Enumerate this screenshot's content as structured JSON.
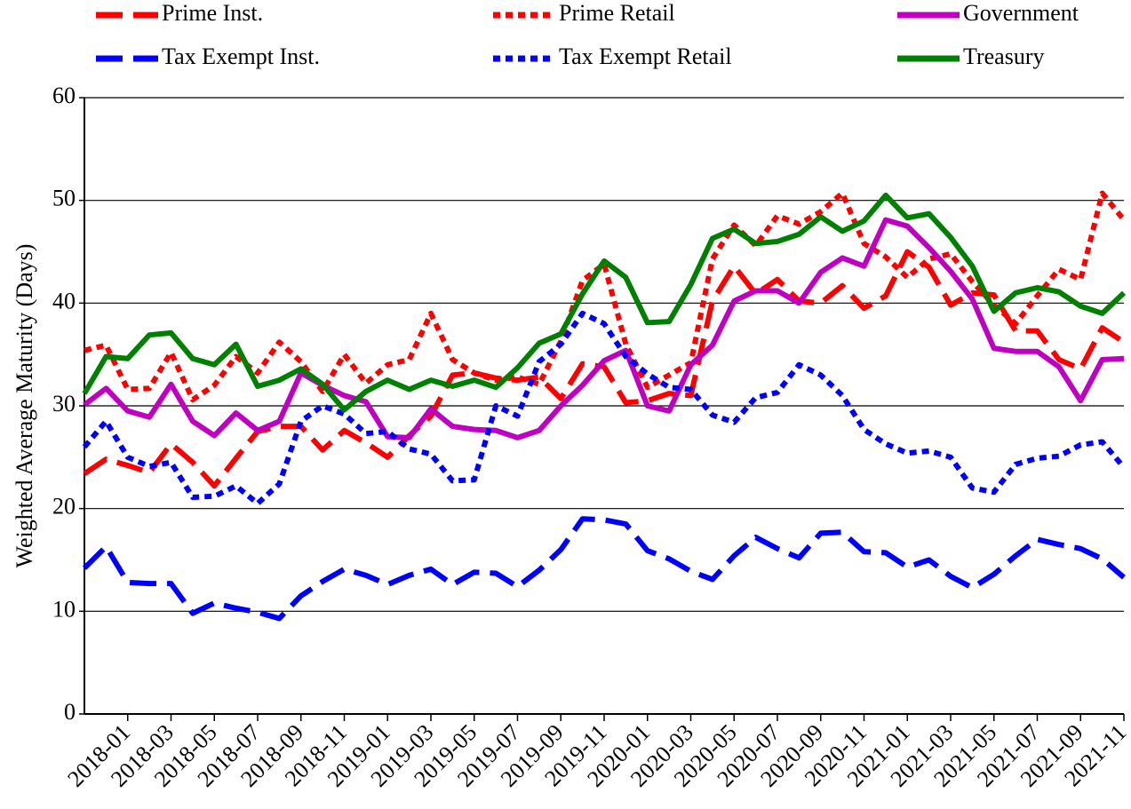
{
  "chart_data": {
    "type": "line",
    "y_label": "Weighted Average Maturity (Days)",
    "categories": [
      null,
      null,
      "2018-01",
      null,
      "2018-03",
      null,
      "2018-05",
      null,
      "2018-07",
      null,
      "2018-09",
      null,
      "2018-11",
      null,
      "2019-01",
      null,
      "2019-03",
      null,
      "2019-05",
      null,
      "2019-07",
      null,
      "2019-09",
      null,
      "2019-11",
      null,
      "2020-01",
      null,
      "2020-03",
      null,
      "2020-05",
      null,
      "2020-07",
      null,
      "2020-09",
      null,
      "2020-11",
      null,
      "2021-01",
      null,
      "2021-03",
      null,
      "2021-05",
      null,
      "2021-07",
      null,
      "2021-09",
      null,
      "2021-11"
    ],
    "ylim": [
      0,
      60
    ],
    "yticks": [
      0,
      10,
      20,
      30,
      40,
      50,
      60
    ],
    "grid": true,
    "legend": "top",
    "series": [
      {
        "name": "Prime Inst.",
        "color": "#ff0000",
        "dash": "dashed",
        "values": [
          23.4,
          24.8,
          24.2,
          23.5,
          26.3,
          24.5,
          22.2,
          24.9,
          27.5,
          28.0,
          28.0,
          25.7,
          27.6,
          26.4,
          25.0,
          27.1,
          29.0,
          33.0,
          33.2,
          32.7,
          32.5,
          32.8,
          30.7,
          34.1,
          33.8,
          30.3,
          30.5,
          31.2,
          31.0,
          40.2,
          43.6,
          40.9,
          42.3,
          40.2,
          40.0,
          41.7,
          39.5,
          40.7,
          45.0,
          43.5,
          39.8,
          41.0,
          40.8,
          37.3,
          37.3,
          34.5,
          33.6,
          37.6,
          36.2
        ]
      },
      {
        "name": "Prime Retail",
        "color": "#ff0000",
        "dash": "dotted",
        "values": [
          35.4,
          35.9,
          31.6,
          31.7,
          35.2,
          30.6,
          32.0,
          34.8,
          33.2,
          36.2,
          34.3,
          31.4,
          35.0,
          32.2,
          34.0,
          34.5,
          39.0,
          34.5,
          33.2,
          32.5,
          32.8,
          32.1,
          36.3,
          42.2,
          43.8,
          36.0,
          31.8,
          33.0,
          34.2,
          44.3,
          47.6,
          45.6,
          48.5,
          47.7,
          48.9,
          50.7,
          45.8,
          44.5,
          42.5,
          44.3,
          44.8,
          42.1,
          39.8,
          38.0,
          40.7,
          43.3,
          42.3,
          50.7,
          48.1
        ]
      },
      {
        "name": "Government",
        "color": "#c000c0",
        "dash": "solid",
        "values": [
          30.1,
          31.7,
          29.5,
          28.9,
          32.1,
          28.5,
          27.1,
          29.3,
          27.6,
          28.5,
          33.2,
          32.0,
          31.0,
          30.4,
          27.0,
          26.9,
          29.7,
          28.0,
          27.7,
          27.6,
          26.9,
          27.6,
          30.0,
          32.0,
          34.4,
          35.4,
          30.0,
          29.5,
          34.0,
          35.9,
          40.2,
          41.2,
          41.2,
          40.0,
          43.0,
          44.4,
          43.6,
          48.1,
          47.5,
          45.4,
          43.1,
          40.4,
          35.6,
          35.3,
          35.3,
          33.8,
          30.5,
          34.5,
          34.6
        ]
      },
      {
        "name": "Tax Exempt Inst.",
        "color": "#0000ff",
        "dash": "dashed",
        "values": [
          14.2,
          16.3,
          12.8,
          12.7,
          12.7,
          9.8,
          10.8,
          10.3,
          9.9,
          9.3,
          11.5,
          12.9,
          14.1,
          13.5,
          12.6,
          13.5,
          14.1,
          12.6,
          13.8,
          13.7,
          12.4,
          14.0,
          16.0,
          19.0,
          18.9,
          18.5,
          15.9,
          15.1,
          13.9,
          13.1,
          15.4,
          17.2,
          16.1,
          15.2,
          17.6,
          17.7,
          15.8,
          15.7,
          14.3,
          15.0,
          13.4,
          12.3,
          13.6,
          15.4,
          17.0,
          16.5,
          16.1,
          15.1,
          13.3
        ]
      },
      {
        "name": "Tax Exempt Retail",
        "color": "#0000ff",
        "dash": "dotted",
        "values": [
          26.0,
          28.5,
          25.0,
          24.1,
          24.5,
          21.1,
          21.2,
          22.2,
          20.5,
          22.4,
          28.5,
          30.0,
          29.2,
          27.3,
          27.5,
          25.8,
          25.3,
          22.7,
          22.8,
          30.0,
          29.0,
          34.3,
          36.0,
          39.0,
          38.0,
          34.8,
          33.1,
          31.8,
          31.6,
          29.1,
          28.4,
          30.8,
          31.3,
          34.0,
          33.0,
          31.0,
          27.7,
          26.3,
          25.4,
          25.6,
          25.0,
          22.0,
          21.6,
          24.3,
          24.9,
          25.1,
          26.2,
          26.5,
          24.0
        ]
      },
      {
        "name": "Treasury",
        "color": "#008000",
        "dash": "solid",
        "values": [
          31.2,
          34.8,
          34.6,
          36.9,
          37.1,
          34.6,
          34.0,
          36.0,
          31.9,
          32.5,
          33.6,
          32.1,
          29.6,
          31.4,
          32.5,
          31.6,
          32.5,
          31.9,
          32.5,
          31.8,
          33.7,
          36.1,
          37.0,
          40.9,
          44.1,
          42.5,
          38.1,
          38.2,
          41.8,
          46.3,
          47.2,
          45.8,
          46.0,
          46.7,
          48.4,
          47.0,
          48.0,
          50.5,
          48.3,
          48.7,
          46.4,
          43.6,
          39.2,
          41.0,
          41.5,
          41.1,
          39.7,
          39.0,
          41.0
        ]
      }
    ]
  }
}
